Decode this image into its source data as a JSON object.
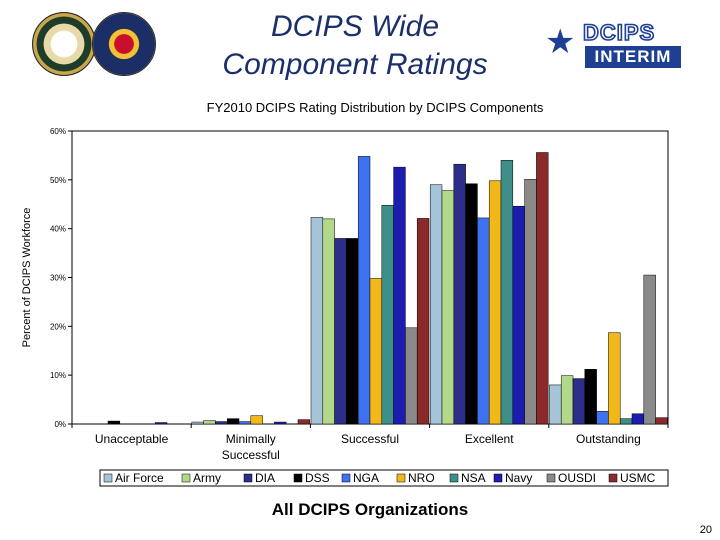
{
  "slide": {
    "title_line1": "DCIPS Wide",
    "title_line2": "Component Ratings",
    "logo_brand": "DCIPS",
    "logo_badge": "INTERIM",
    "footer": "All DCIPS Organizations",
    "page_number": "20"
  },
  "chart_data": {
    "type": "bar",
    "title": "FY2010 DCIPS Rating Distribution by DCIPS Components",
    "xlabel": "",
    "ylabel": "Percent of DCIPS Workforce",
    "ylim": [
      0,
      60
    ],
    "yticks": [
      "0%",
      "10%",
      "20%",
      "30%",
      "40%",
      "50%",
      "60%"
    ],
    "grid": false,
    "legend_position": "bottom",
    "categories": [
      "Unacceptable",
      "Minimally Successful",
      "Successful",
      "Excellent",
      "Outstanding"
    ],
    "series": [
      {
        "name": "Air Force",
        "color": "#a6c4d8",
        "values": [
          0.0,
          0.4,
          42.3,
          49.0,
          8.0
        ]
      },
      {
        "name": "Army",
        "color": "#b2d88a",
        "values": [
          0.0,
          0.7,
          42.0,
          47.8,
          9.9
        ]
      },
      {
        "name": "DIA",
        "color": "#2d2d8a",
        "values": [
          0.0,
          0.5,
          38.0,
          53.2,
          9.3
        ]
      },
      {
        "name": "DSS",
        "color": "#000000",
        "values": [
          0.6,
          1.1,
          38.0,
          49.2,
          11.2
        ]
      },
      {
        "name": "NGA",
        "color": "#3f72f0",
        "values": [
          0.0,
          0.5,
          54.8,
          42.2,
          2.6
        ]
      },
      {
        "name": "NRO",
        "color": "#f2b81a",
        "values": [
          0.0,
          1.7,
          29.8,
          49.8,
          18.7
        ]
      },
      {
        "name": "NSA",
        "color": "#3e8f8a",
        "values": [
          0.0,
          0.0,
          44.8,
          54.0,
          1.1
        ]
      },
      {
        "name": "Navy",
        "color": "#1c1cb0",
        "values": [
          0.3,
          0.4,
          52.6,
          44.6,
          2.1
        ]
      },
      {
        "name": "OUSDI",
        "color": "#8a8a8a",
        "values": [
          0.0,
          0.0,
          19.7,
          50.1,
          30.5
        ]
      },
      {
        "name": "USMC",
        "color": "#8b2a2a",
        "values": [
          0.0,
          0.9,
          42.1,
          55.6,
          1.3
        ]
      }
    ]
  }
}
